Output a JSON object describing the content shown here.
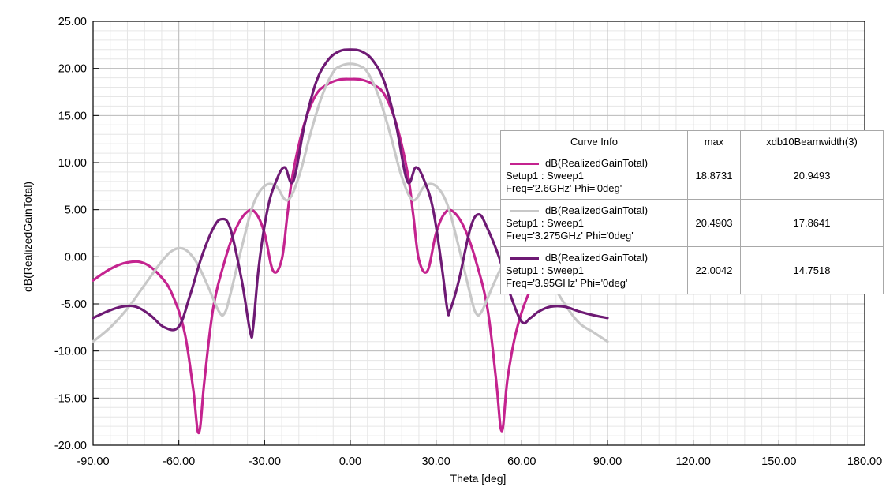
{
  "chart_data": {
    "type": "line",
    "xlabel": "Theta [deg]",
    "ylabel": "dB(RealizedGainTotal)",
    "xlim": [
      -90,
      180
    ],
    "ylim": [
      -20,
      25
    ],
    "x_ticks": [
      "-90.00",
      "-60.00",
      "-30.00",
      "0.00",
      "30.00",
      "60.00",
      "90.00",
      "120.00",
      "150.00",
      "180.00"
    ],
    "y_ticks": [
      "25.00",
      "20.00",
      "15.00",
      "10.00",
      "5.00",
      "0.00",
      "-5.00",
      "-10.00",
      "-15.00",
      "-20.00"
    ],
    "grid": true,
    "series": [
      {
        "name": "dB(RealizedGainTotal) Setup1 : Sweep1 Freq='2.6GHz' Phi='0deg'",
        "color": "#c4238f",
        "x": [
          -90,
          -84,
          -78,
          -72,
          -66,
          -62,
          -58,
          -55,
          -53,
          -51,
          -48,
          -44,
          -40,
          -36,
          -33,
          -30,
          -27,
          -24,
          -22,
          -20,
          -16,
          -12,
          -8,
          -4,
          0,
          4,
          8,
          12,
          16,
          20,
          22,
          24,
          27,
          30,
          33,
          36,
          40,
          44,
          48,
          51,
          53,
          55,
          58,
          62,
          66
        ],
        "y": [
          -2.5,
          -1.3,
          -0.6,
          -0.7,
          -2.2,
          -4.2,
          -8,
          -14,
          -18.7,
          -13,
          -5.5,
          -0.5,
          3,
          4.8,
          4.6,
          2.5,
          -1.5,
          -0.3,
          4.5,
          9,
          14.2,
          17.2,
          18.3,
          18.8,
          18.87,
          18.8,
          18.3,
          17.2,
          14.2,
          9,
          4.5,
          -0.3,
          -1.5,
          2.5,
          4.6,
          4.8,
          3,
          -0.5,
          -5.5,
          -13,
          -18.5,
          -13,
          -8,
          -4.2,
          -2.2
        ]
      },
      {
        "name": "dB(RealizedGainTotal) Setup1 : Sweep1 Freq='3.275GHz' Phi='0deg'",
        "color": "#c8c8c8",
        "x": [
          -90,
          -84,
          -78,
          -72,
          -66,
          -62,
          -58,
          -54,
          -50,
          -46,
          -44,
          -42,
          -38,
          -34,
          -30,
          -26,
          -22,
          -18,
          -14,
          -10,
          -6,
          -3,
          0,
          3,
          6,
          10,
          14,
          18,
          22,
          26,
          30,
          34,
          38,
          42,
          44,
          46,
          50,
          54,
          58,
          62,
          66,
          70,
          75,
          80,
          85,
          90
        ],
        "y": [
          -9,
          -7.5,
          -5.5,
          -3,
          -0.5,
          0.7,
          0.8,
          -0.5,
          -3,
          -5.8,
          -6,
          -4,
          1,
          5.5,
          7.5,
          7.5,
          6,
          8.5,
          13,
          17,
          19.6,
          20.3,
          20.49,
          20.3,
          19.6,
          17,
          13,
          8.5,
          6,
          7.5,
          7.5,
          5.5,
          1,
          -4,
          -6,
          -5.8,
          -3,
          -0.5,
          0.8,
          0.7,
          -0.5,
          -2.5,
          -5,
          -7,
          -8,
          -9
        ]
      },
      {
        "name": "dB(RealizedGainTotal) Setup1 : Sweep1 Freq='3.95GHz' Phi='0deg'",
        "color": "#6e1a74",
        "x": [
          -90,
          -85,
          -80,
          -75,
          -70,
          -65,
          -60,
          -56,
          -52,
          -48,
          -45,
          -42,
          -38,
          -35,
          -34,
          -32,
          -29,
          -26,
          -23,
          -20,
          -16,
          -12,
          -8,
          -4,
          0,
          4,
          8,
          12,
          16,
          20,
          23,
          26,
          29,
          32,
          34,
          35,
          38,
          42,
          45,
          48,
          52,
          56,
          60,
          63,
          66,
          70,
          75,
          80,
          85,
          90
        ],
        "y": [
          -6.5,
          -5.8,
          -5.3,
          -5.3,
          -6.2,
          -7.5,
          -7.4,
          -4,
          0,
          3,
          4,
          3,
          -2.5,
          -8,
          -7.5,
          -1,
          5,
          8,
          9.5,
          8,
          14,
          18.5,
          20.8,
          21.8,
          22,
          21.8,
          20.8,
          18.5,
          14,
          8,
          9.5,
          8,
          5,
          -1,
          -5.7,
          -5.6,
          -2.5,
          3,
          4.5,
          3,
          0,
          -4,
          -6.9,
          -6.5,
          -5.8,
          -5.3,
          -5.3,
          -5.8,
          -6.2,
          -6.5
        ]
      }
    ]
  },
  "curve_info": {
    "headers": [
      "Curve Info",
      "max",
      "xdb10Beamwidth(3)"
    ],
    "rows": [
      {
        "expr": "dB(RealizedGainTotal)",
        "setup": "Setup1 : Sweep1",
        "freq": "Freq='2.6GHz' Phi='0deg'",
        "max": "18.8731",
        "beamwidth": "20.9493",
        "color": "#c4238f"
      },
      {
        "expr": "dB(RealizedGainTotal)",
        "setup": "Setup1 : Sweep1",
        "freq": "Freq='3.275GHz' Phi='0deg'",
        "max": "20.4903",
        "beamwidth": "17.8641",
        "color": "#c8c8c8"
      },
      {
        "expr": "dB(RealizedGainTotal)",
        "setup": "Setup1 : Sweep1",
        "freq": "Freq='3.95GHz' Phi='0deg'",
        "max": "22.0042",
        "beamwidth": "14.7518",
        "color": "#6e1a74"
      }
    ]
  }
}
